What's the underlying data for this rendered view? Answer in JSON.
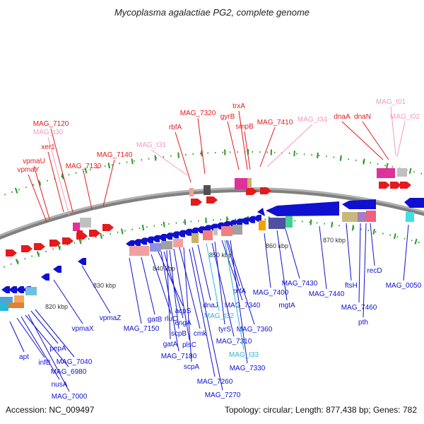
{
  "title": "Mycoplasma agalactiae PG2, complete genome",
  "footer": {
    "accession": "Accession: NC_009497",
    "summary": "Topology: circular; Length: 877,438 bp; Genes: 782"
  },
  "colors": {
    "forward": "#e41a1c",
    "reverse": "#1010d0",
    "trna": "#f49ac1",
    "rna_teal": "#2ab8d6",
    "backbone": "#808080",
    "tick": "#2a9a2a"
  },
  "kbp_ticks": [
    "820 kbp",
    "830 kbp",
    "840 kbp",
    "850 kbp",
    "860 kbp",
    "870 kbp"
  ],
  "labels_forward": [
    "MAG_7120",
    "MAG_t30",
    "xer1",
    "vpmaU",
    "vpmaY",
    "MAG_7130",
    "MAG_7140",
    "MAG_t31",
    "rbfA",
    "MAG_7320",
    "gyrB",
    "trxA",
    "smpB",
    "MAG_7410",
    "MAG_t34",
    "dnaA",
    "dnaN",
    "MAG_t01",
    "MAG_t02"
  ],
  "labels_reverse": [
    "apt",
    "infB",
    "pepA",
    "MAG_7040",
    "MAG_6980",
    "nusA",
    "MAG_7000",
    "vpmaX",
    "vpmaZ",
    "MAG_7150",
    "gatB",
    "rluC",
    "acpS",
    "engA",
    "scpB",
    "gatA",
    "plsC",
    "cmk",
    "MAG_7180",
    "scpA",
    "dnaJ",
    "MAG_t32",
    "prfA",
    "MAG_7340",
    "tyrS",
    "MAG_7360",
    "MAG_7310",
    "MAG_t33",
    "MAG_7330",
    "MAG_7260",
    "MAG_7270",
    "MAG_7400",
    "mgtA",
    "MAG_7430",
    "MAG_7440",
    "ftsH",
    "MAG_7460",
    "recD",
    "pth",
    "MAG_0050"
  ]
}
